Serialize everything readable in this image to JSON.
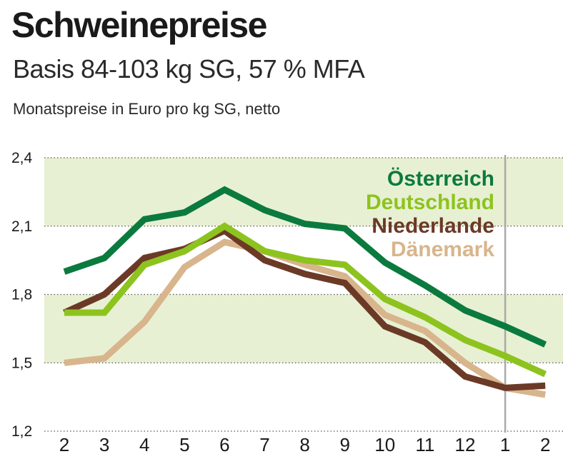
{
  "header": {
    "title": "Schweinepreise",
    "subtitle": "Basis 84-103 kg SG, 57 % MFA",
    "unit_label": "Monatspreise in Euro pro kg SG, netto"
  },
  "chart_data": {
    "type": "line",
    "title": "Schweinepreise",
    "subtitle": "Basis 84-103 kg SG, 57 % MFA",
    "ylabel": "Monatspreise in Euro pro kg SG, netto",
    "xlabel": "",
    "categories": [
      "2",
      "3",
      "4",
      "5",
      "6",
      "7",
      "8",
      "9",
      "10",
      "11",
      "12",
      "1",
      "2"
    ],
    "ylim": [
      1.2,
      2.4
    ],
    "yticks": [
      1.2,
      1.5,
      1.8,
      2.1,
      2.4
    ],
    "ytick_labels": [
      "1,2",
      "1,5",
      "1,8",
      "2,1",
      "2,4"
    ],
    "bands": [
      [
        1.5,
        1.8
      ],
      [
        2.1,
        2.4
      ]
    ],
    "year_divider_after_index": 11,
    "legend_position": "top-right",
    "series": [
      {
        "name": "Österreich",
        "color": "#0b7a3e",
        "values": [
          1.9,
          1.96,
          2.13,
          2.16,
          2.26,
          2.17,
          2.11,
          2.09,
          1.94,
          1.84,
          1.73,
          1.66,
          1.58
        ]
      },
      {
        "name": "Deutschland",
        "color": "#8dc31e",
        "values": [
          1.72,
          1.72,
          1.93,
          1.99,
          2.1,
          1.99,
          1.95,
          1.93,
          1.78,
          1.7,
          1.6,
          1.53,
          1.45
        ]
      },
      {
        "name": "Niederlande",
        "color": "#6b3a26",
        "values": [
          1.72,
          1.8,
          1.96,
          2.0,
          2.08,
          1.95,
          1.89,
          1.85,
          1.66,
          1.59,
          1.44,
          1.39,
          1.4
        ]
      },
      {
        "name": "Dänemark",
        "color": "#d8b58c",
        "values": [
          1.5,
          1.52,
          1.68,
          1.92,
          2.03,
          1.99,
          1.93,
          1.88,
          1.71,
          1.64,
          1.5,
          1.39,
          1.36
        ]
      }
    ]
  }
}
